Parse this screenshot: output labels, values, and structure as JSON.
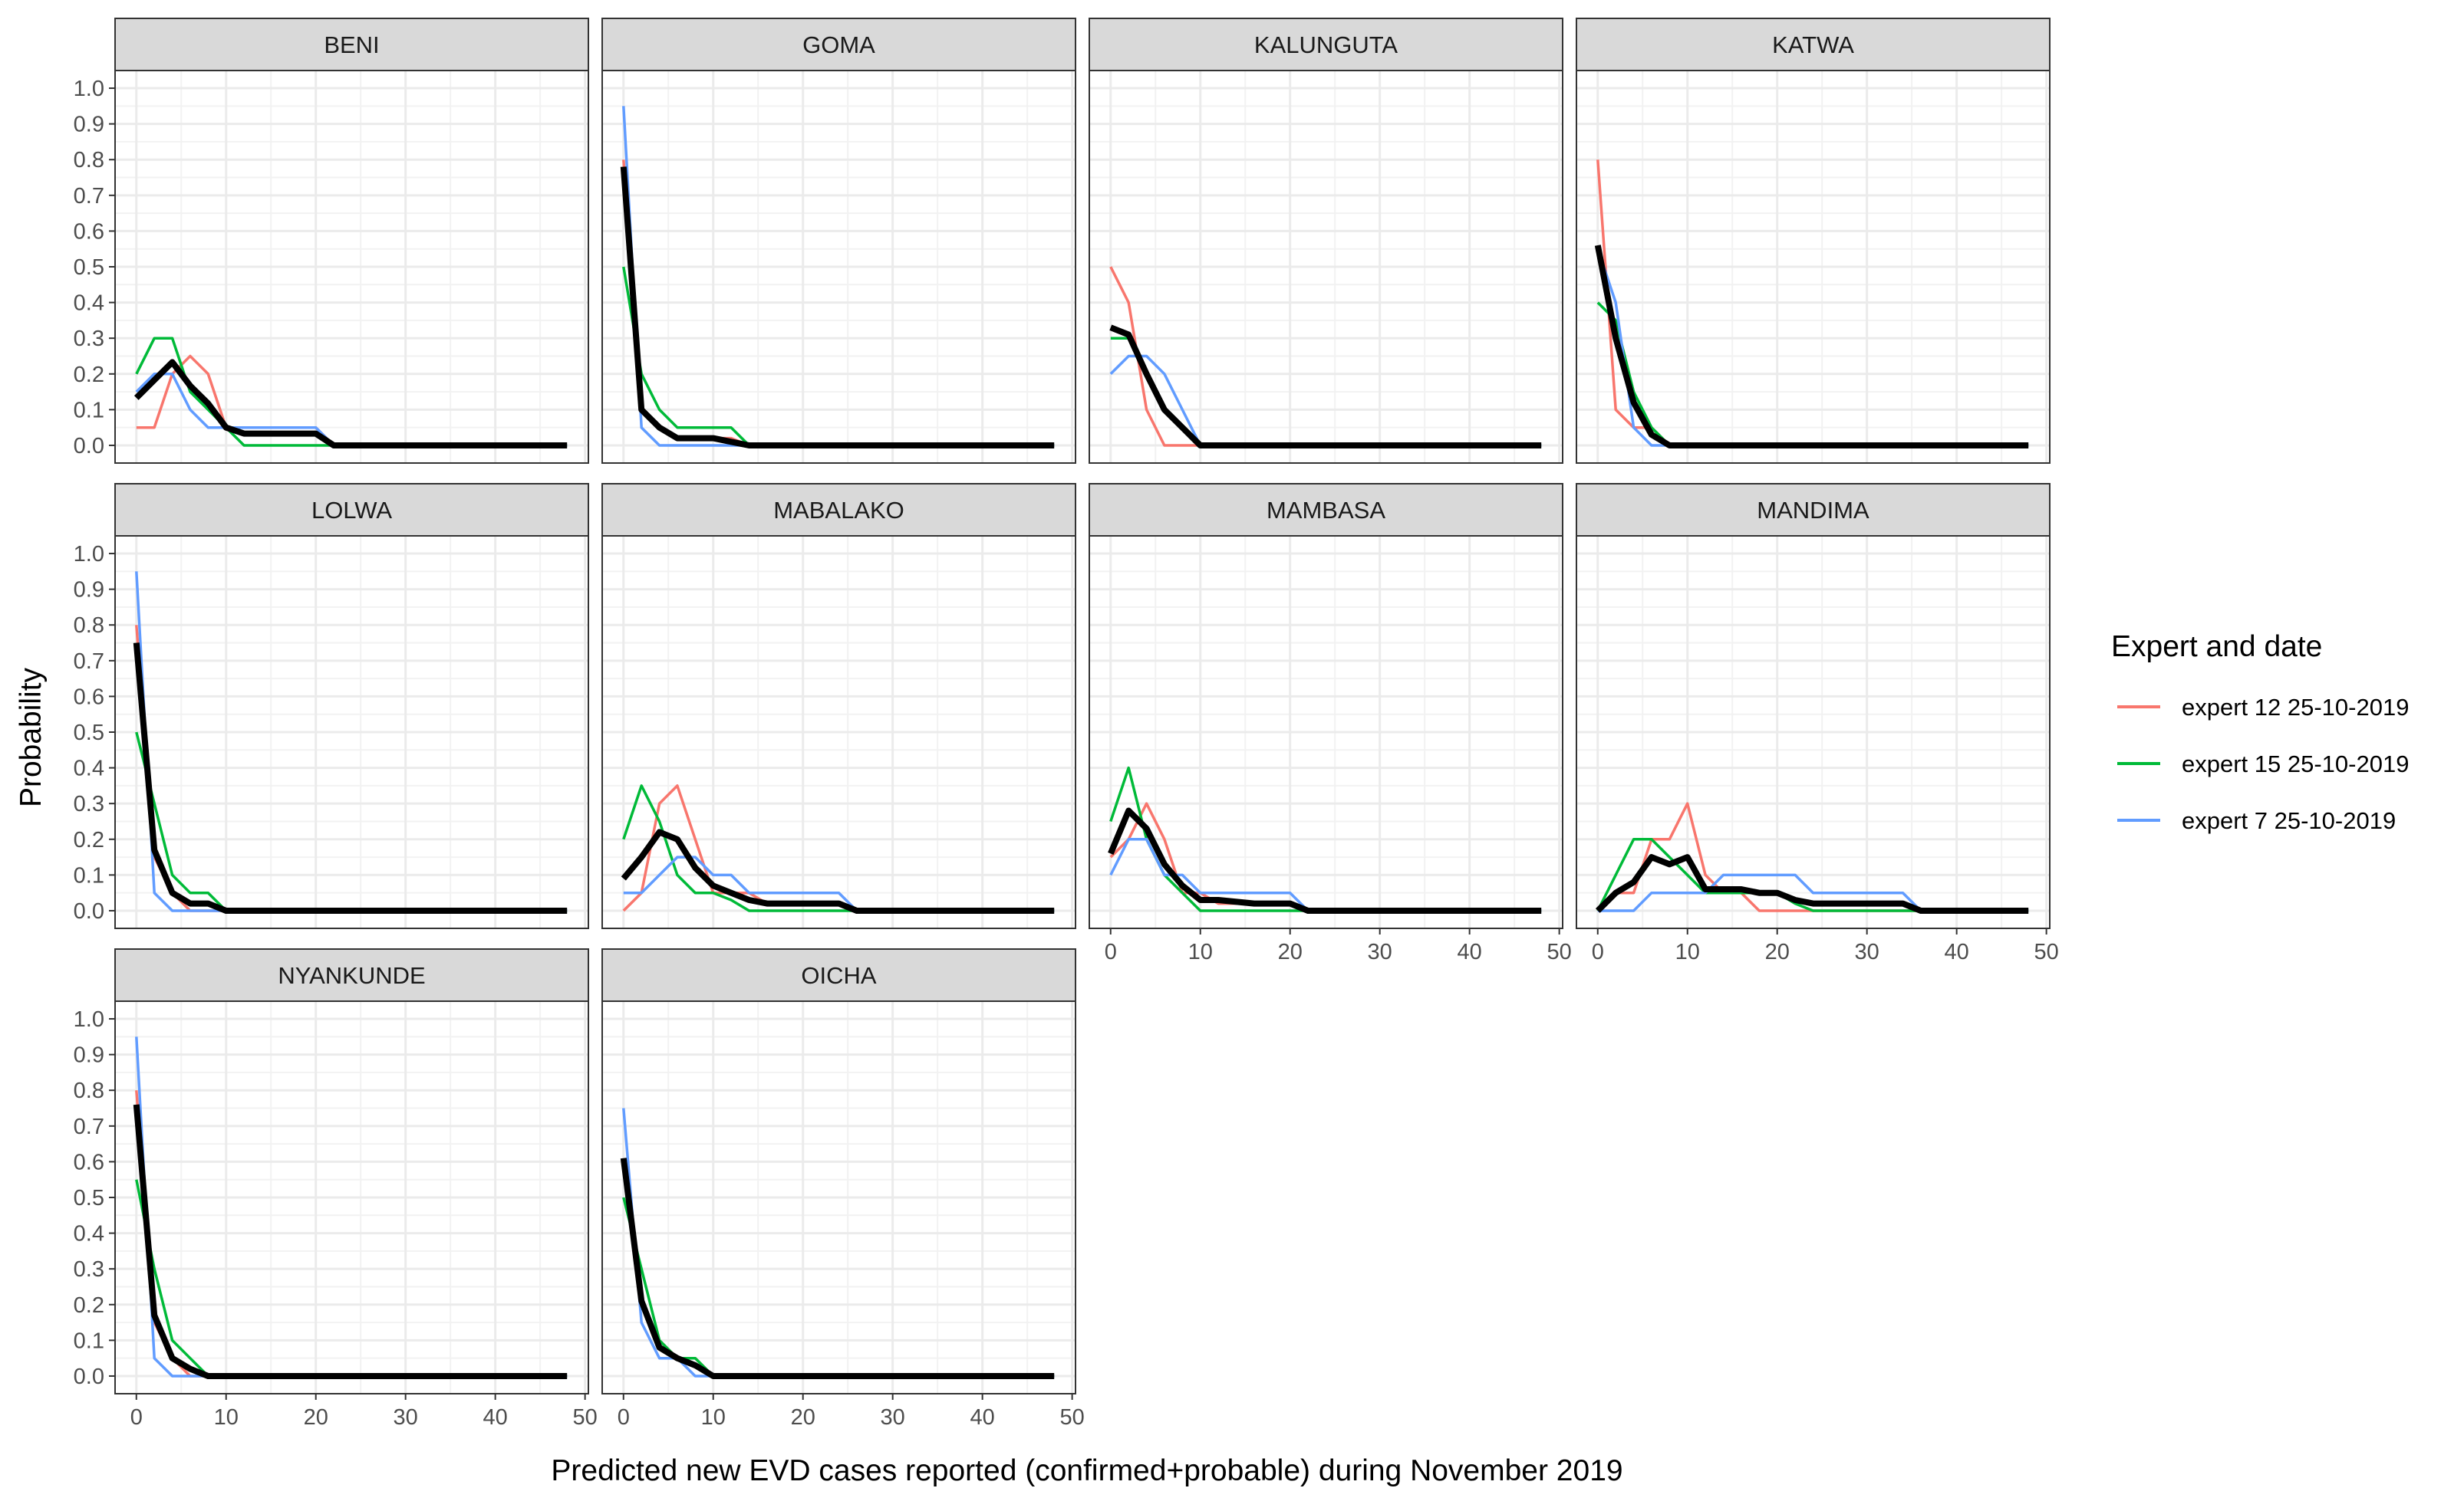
{
  "chart_data": {
    "type": "line",
    "xlabel": "Predicted new EVD cases reported (confirmed+probable) during November 2019",
    "ylabel": "Probability",
    "xlim": [
      0,
      48
    ],
    "ylim": [
      0,
      1
    ],
    "x_ticks": [
      0,
      10,
      20,
      30,
      40,
      50
    ],
    "y_ticks": [
      "0.0",
      "0.1",
      "0.2",
      "0.3",
      "0.4",
      "0.5",
      "0.6",
      "0.7",
      "0.8",
      "0.9",
      "1.0"
    ],
    "legend_title": "Expert and date",
    "legend_position": "right",
    "grid": true,
    "series_styles": [
      {
        "name": "expert 12 25-10-2019",
        "color": "#F8766D"
      },
      {
        "name": "expert 15 25-10-2019",
        "color": "#00BA38"
      },
      {
        "name": "expert 7 25-10-2019",
        "color": "#619CFF"
      }
    ],
    "aggregate_color": "#000000",
    "panels": [
      {
        "title": "BENI",
        "series": [
          {
            "x": [
              0,
              2,
              4,
              6,
              8,
              10,
              12,
              16,
              20,
              22,
              48
            ],
            "values": [
              0.05,
              0.05,
              0.2,
              0.25,
              0.2,
              0.05,
              0.05,
              0.05,
              0.05,
              0,
              0
            ]
          },
          {
            "x": [
              0,
              2,
              4,
              6,
              8,
              10,
              12,
              16,
              20,
              22,
              48
            ],
            "values": [
              0.2,
              0.3,
              0.3,
              0.15,
              0.1,
              0.05,
              0,
              0,
              0,
              0,
              0
            ]
          },
          {
            "x": [
              0,
              2,
              4,
              6,
              8,
              10,
              12,
              16,
              20,
              22,
              48
            ],
            "values": [
              0.15,
              0.2,
              0.2,
              0.1,
              0.05,
              0.05,
              0.05,
              0.05,
              0.05,
              0,
              0
            ]
          }
        ],
        "aggregate": {
          "x": [
            0,
            2,
            4,
            6,
            8,
            10,
            12,
            16,
            20,
            22,
            48
          ],
          "values": [
            0.133,
            0.183,
            0.233,
            0.167,
            0.117,
            0.05,
            0.033,
            0.033,
            0.033,
            0,
            0
          ]
        }
      },
      {
        "title": "GOMA",
        "series": [
          {
            "x": [
              0,
              2,
              4,
              6,
              8,
              10,
              12,
              14,
              48
            ],
            "values": [
              0.8,
              0.1,
              0.05,
              0.02,
              0.02,
              0.02,
              0.02,
              0,
              0
            ]
          },
          {
            "x": [
              0,
              2,
              4,
              6,
              8,
              10,
              12,
              14,
              48
            ],
            "values": [
              0.5,
              0.2,
              0.1,
              0.05,
              0.05,
              0.05,
              0.05,
              0,
              0
            ]
          },
          {
            "x": [
              0,
              2,
              4,
              6,
              8,
              10,
              12,
              14,
              48
            ],
            "values": [
              0.95,
              0.05,
              0,
              0,
              0,
              0,
              0,
              0,
              0
            ]
          }
        ],
        "aggregate": {
          "x": [
            0,
            2,
            4,
            6,
            8,
            10,
            12,
            14,
            48
          ],
          "values": [
            0.78,
            0.1,
            0.05,
            0.02,
            0.02,
            0.02,
            0.01,
            0,
            0
          ]
        }
      },
      {
        "title": "KALUNGUTA",
        "series": [
          {
            "x": [
              0,
              2,
              4,
              6,
              8,
              10,
              48
            ],
            "values": [
              0.5,
              0.4,
              0.1,
              0,
              0,
              0,
              0
            ]
          },
          {
            "x": [
              0,
              2,
              4,
              6,
              8,
              10,
              48
            ],
            "values": [
              0.3,
              0.3,
              0.2,
              0.1,
              0.05,
              0,
              0
            ]
          },
          {
            "x": [
              0,
              2,
              4,
              6,
              8,
              10,
              48
            ],
            "values": [
              0.2,
              0.25,
              0.25,
              0.2,
              0.1,
              0,
              0
            ]
          }
        ],
        "aggregate": {
          "x": [
            0,
            2,
            4,
            6,
            8,
            10,
            48
          ],
          "values": [
            0.33,
            0.31,
            0.2,
            0.1,
            0.05,
            0,
            0
          ]
        }
      },
      {
        "title": "KATWA",
        "series": [
          {
            "x": [
              0,
              2,
              4,
              6,
              8,
              48
            ],
            "values": [
              0.8,
              0.1,
              0.05,
              0.05,
              0,
              0
            ]
          },
          {
            "x": [
              0,
              2,
              4,
              6,
              8,
              48
            ],
            "values": [
              0.4,
              0.35,
              0.15,
              0.05,
              0,
              0
            ]
          },
          {
            "x": [
              0,
              2,
              4,
              6,
              8,
              48
            ],
            "values": [
              0.55,
              0.4,
              0.05,
              0,
              0,
              0
            ]
          }
        ],
        "aggregate": {
          "x": [
            0,
            2,
            4,
            6,
            8,
            48
          ],
          "values": [
            0.56,
            0.3,
            0.12,
            0.03,
            0,
            0
          ]
        }
      },
      {
        "title": "LOLWA",
        "series": [
          {
            "x": [
              0,
              2,
              4,
              6,
              8,
              10,
              48
            ],
            "values": [
              0.8,
              0.15,
              0.05,
              0,
              0,
              0,
              0
            ]
          },
          {
            "x": [
              0,
              2,
              4,
              6,
              8,
              10,
              48
            ],
            "values": [
              0.5,
              0.3,
              0.1,
              0.05,
              0.05,
              0,
              0
            ]
          },
          {
            "x": [
              0,
              2,
              4,
              6,
              8,
              10,
              48
            ],
            "values": [
              0.95,
              0.05,
              0,
              0,
              0,
              0,
              0
            ]
          }
        ],
        "aggregate": {
          "x": [
            0,
            2,
            4,
            6,
            8,
            10,
            48
          ],
          "values": [
            0.75,
            0.17,
            0.05,
            0.02,
            0.02,
            0,
            0
          ]
        }
      },
      {
        "title": "MABALAKO",
        "series": [
          {
            "x": [
              0,
              2,
              4,
              6,
              8,
              10,
              12,
              14,
              16,
              20,
              24,
              26,
              48
            ],
            "values": [
              0,
              0.05,
              0.3,
              0.35,
              0.2,
              0.05,
              0.05,
              0.05,
              0.02,
              0.02,
              0.02,
              0,
              0
            ]
          },
          {
            "x": [
              0,
              2,
              4,
              6,
              8,
              10,
              12,
              14,
              16,
              20,
              24,
              26,
              48
            ],
            "values": [
              0.2,
              0.35,
              0.25,
              0.1,
              0.05,
              0.05,
              0.03,
              0,
              0,
              0,
              0,
              0,
              0
            ]
          },
          {
            "x": [
              0,
              2,
              4,
              6,
              8,
              10,
              12,
              14,
              16,
              20,
              24,
              26,
              48
            ],
            "values": [
              0.05,
              0.05,
              0.1,
              0.15,
              0.15,
              0.1,
              0.1,
              0.05,
              0.05,
              0.05,
              0.05,
              0,
              0
            ]
          }
        ],
        "aggregate": {
          "x": [
            0,
            2,
            4,
            6,
            8,
            10,
            12,
            14,
            16,
            20,
            24,
            26,
            48
          ],
          "values": [
            0.09,
            0.15,
            0.22,
            0.2,
            0.12,
            0.07,
            0.05,
            0.03,
            0.02,
            0.02,
            0.02,
            0,
            0
          ]
        }
      },
      {
        "title": "MAMBASA",
        "series": [
          {
            "x": [
              0,
              2,
              4,
              6,
              8,
              10,
              12,
              16,
              20,
              22,
              48
            ],
            "values": [
              0.15,
              0.2,
              0.3,
              0.2,
              0.05,
              0.05,
              0.02,
              0.02,
              0.02,
              0,
              0
            ]
          },
          {
            "x": [
              0,
              2,
              4,
              6,
              8,
              10,
              12,
              16,
              20,
              22,
              48
            ],
            "values": [
              0.25,
              0.4,
              0.2,
              0.1,
              0.05,
              0,
              0,
              0,
              0,
              0,
              0
            ]
          },
          {
            "x": [
              0,
              2,
              4,
              6,
              8,
              10,
              12,
              16,
              20,
              22,
              48
            ],
            "values": [
              0.1,
              0.2,
              0.2,
              0.1,
              0.1,
              0.05,
              0.05,
              0.05,
              0.05,
              0,
              0
            ]
          }
        ],
        "aggregate": {
          "x": [
            0,
            2,
            4,
            6,
            8,
            10,
            12,
            16,
            20,
            22,
            48
          ],
          "values": [
            0.16,
            0.28,
            0.23,
            0.13,
            0.07,
            0.03,
            0.03,
            0.02,
            0.02,
            0,
            0
          ]
        }
      },
      {
        "title": "MANDIMA",
        "series": [
          {
            "x": [
              0,
              2,
              4,
              6,
              8,
              10,
              12,
              14,
              16,
              18,
              20,
              22,
              24,
              34,
              36,
              48
            ],
            "values": [
              0,
              0.05,
              0.05,
              0.2,
              0.2,
              0.3,
              0.1,
              0.05,
              0.05,
              0,
              0,
              0,
              0,
              0,
              0,
              0
            ]
          },
          {
            "x": [
              0,
              2,
              4,
              6,
              8,
              10,
              12,
              14,
              16,
              18,
              20,
              22,
              24,
              34,
              36,
              48
            ],
            "values": [
              0,
              0.1,
              0.2,
              0.2,
              0.15,
              0.1,
              0.05,
              0.05,
              0.05,
              0.05,
              0.05,
              0.02,
              0,
              0,
              0,
              0
            ]
          },
          {
            "x": [
              0,
              2,
              4,
              6,
              8,
              10,
              12,
              14,
              16,
              18,
              20,
              22,
              24,
              34,
              36,
              48
            ],
            "values": [
              0,
              0,
              0,
              0.05,
              0.05,
              0.05,
              0.05,
              0.1,
              0.1,
              0.1,
              0.1,
              0.1,
              0.05,
              0.05,
              0,
              0
            ]
          }
        ],
        "aggregate": {
          "x": [
            0,
            2,
            4,
            6,
            8,
            10,
            12,
            14,
            16,
            18,
            20,
            22,
            24,
            34,
            36,
            48
          ],
          "values": [
            0,
            0.05,
            0.08,
            0.15,
            0.13,
            0.15,
            0.06,
            0.06,
            0.06,
            0.05,
            0.05,
            0.03,
            0.02,
            0.02,
            0,
            0
          ]
        }
      },
      {
        "title": "NYANKUNDE",
        "series": [
          {
            "x": [
              0,
              2,
              4,
              6,
              8,
              48
            ],
            "values": [
              0.8,
              0.15,
              0.05,
              0,
              0,
              0
            ]
          },
          {
            "x": [
              0,
              2,
              4,
              6,
              8,
              48
            ],
            "values": [
              0.55,
              0.3,
              0.1,
              0.05,
              0,
              0
            ]
          },
          {
            "x": [
              0,
              2,
              4,
              6,
              8,
              48
            ],
            "values": [
              0.95,
              0.05,
              0,
              0,
              0,
              0
            ]
          }
        ],
        "aggregate": {
          "x": [
            0,
            2,
            4,
            6,
            8,
            48
          ],
          "values": [
            0.76,
            0.17,
            0.05,
            0.02,
            0,
            0
          ]
        }
      },
      {
        "title": "OICHA",
        "series": [
          {
            "x": [
              0,
              2,
              4,
              6,
              8,
              10,
              48
            ],
            "values": [
              0.6,
              0.2,
              0.1,
              0.05,
              0.05,
              0,
              0
            ]
          },
          {
            "x": [
              0,
              2,
              4,
              6,
              8,
              10,
              48
            ],
            "values": [
              0.5,
              0.3,
              0.1,
              0.05,
              0.05,
              0,
              0
            ]
          },
          {
            "x": [
              0,
              2,
              4,
              6,
              8,
              10,
              48
            ],
            "values": [
              0.75,
              0.15,
              0.05,
              0.05,
              0,
              0,
              0
            ]
          }
        ],
        "aggregate": {
          "x": [
            0,
            2,
            4,
            6,
            8,
            10,
            48
          ],
          "values": [
            0.61,
            0.21,
            0.08,
            0.05,
            0.03,
            0,
            0
          ]
        }
      }
    ]
  }
}
